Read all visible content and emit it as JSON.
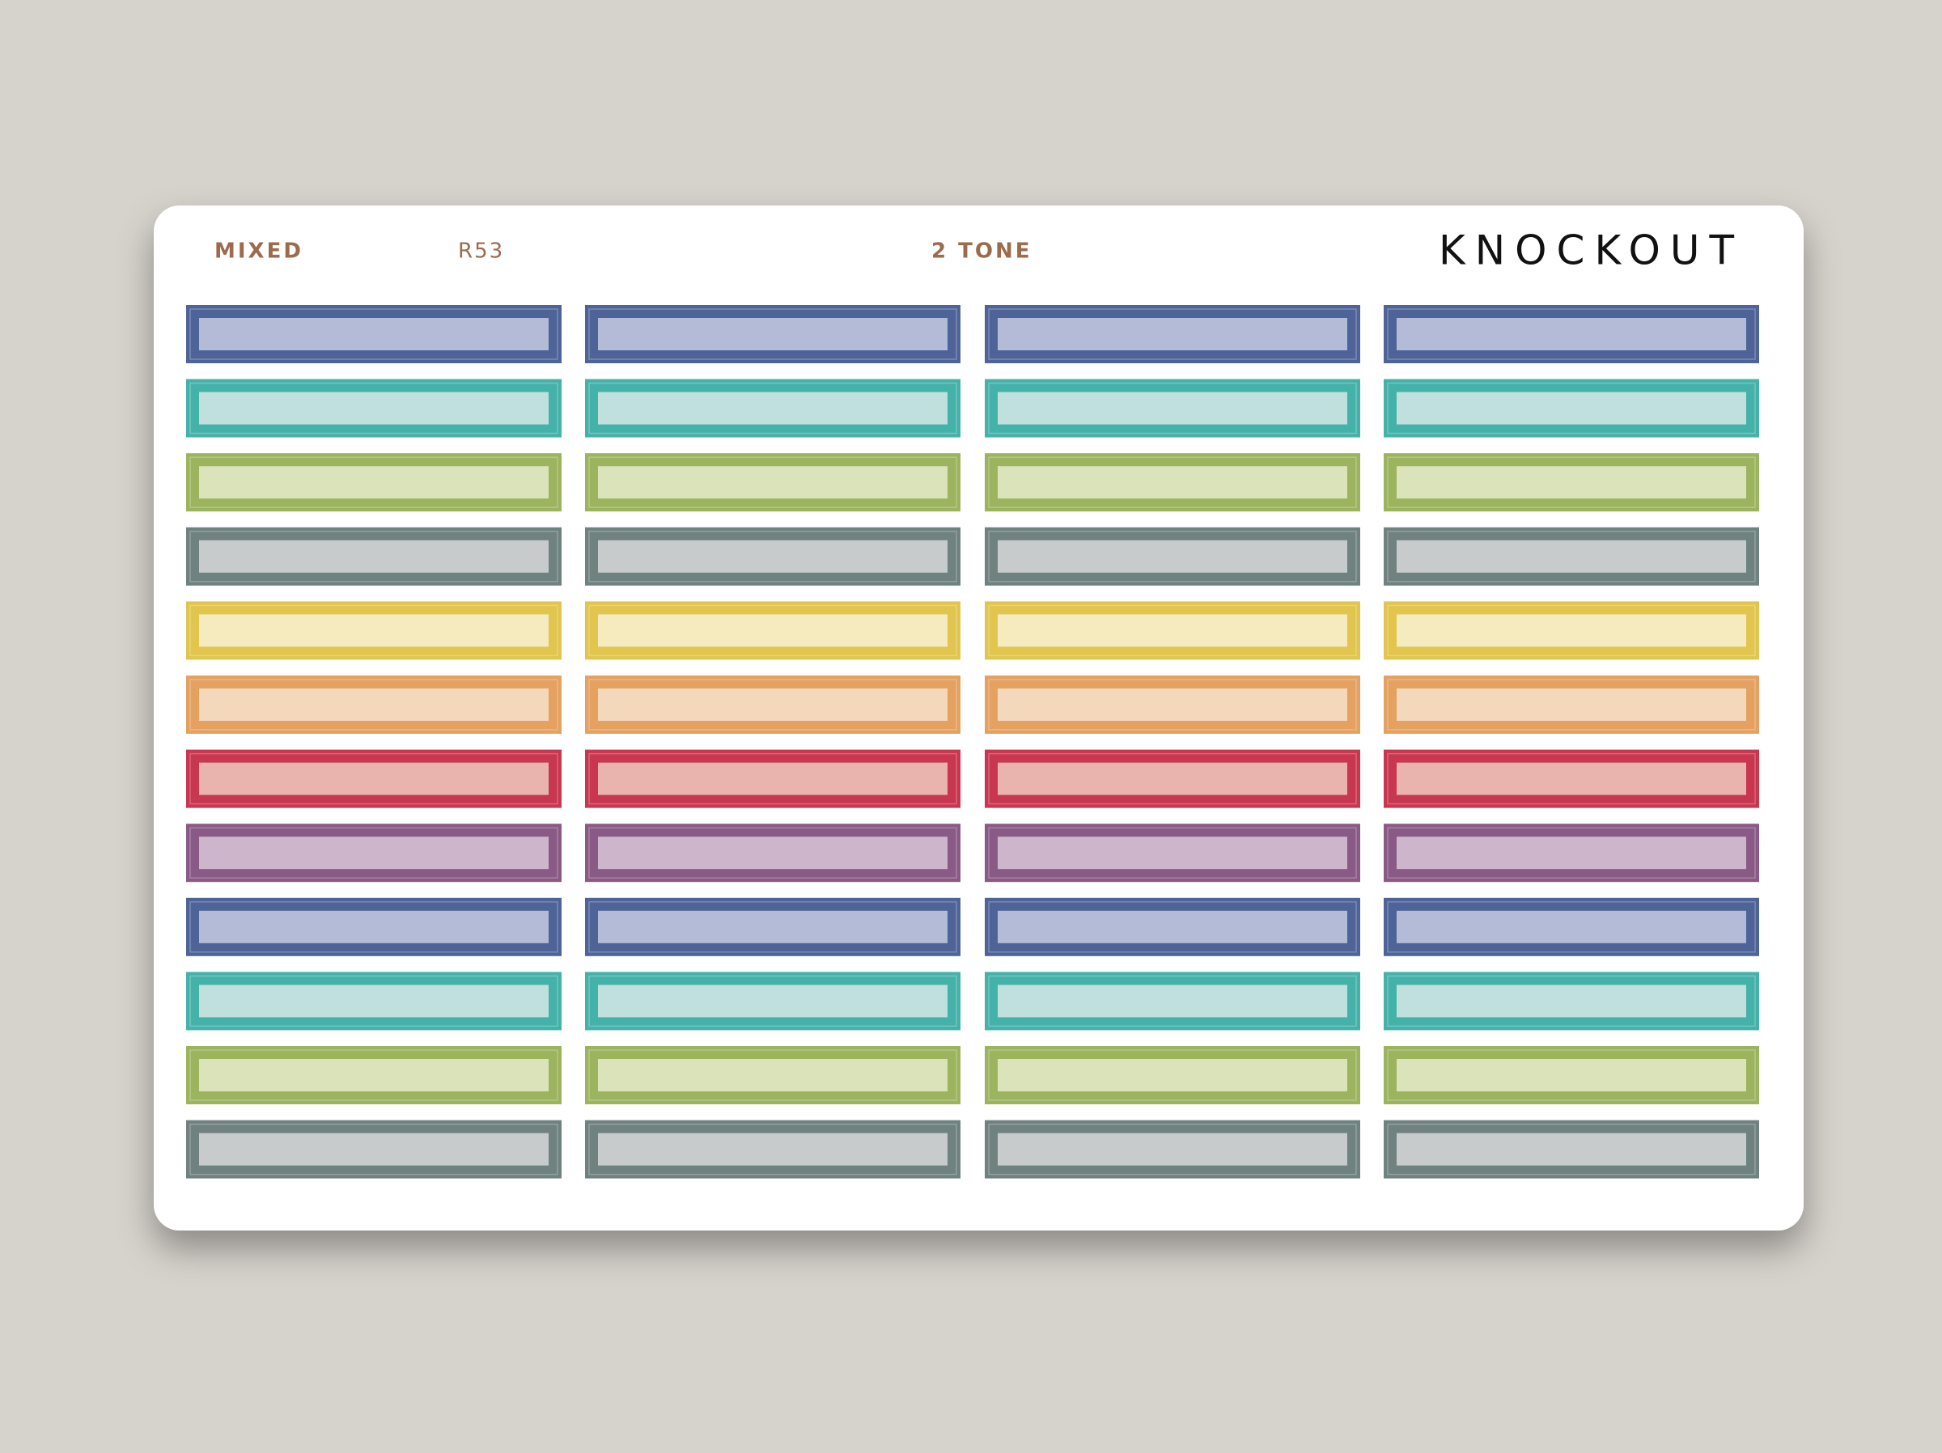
{
  "header": {
    "collection": "MIXED",
    "code": "R53",
    "style": "2 TONE",
    "brand": "KNOCKOUT"
  }
}
